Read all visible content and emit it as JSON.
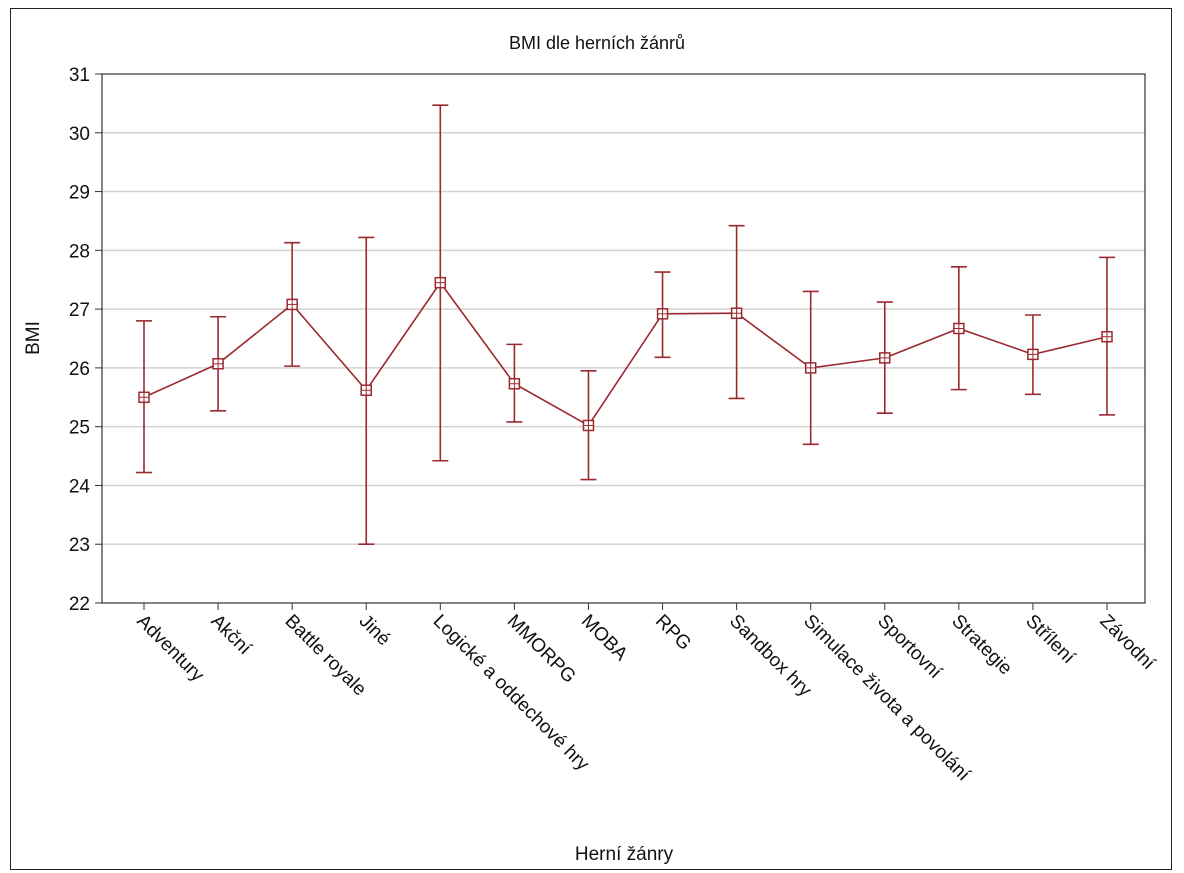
{
  "chart_data": {
    "type": "line",
    "title": "BMI dle herních žánrů",
    "xlabel": "Herní žánry",
    "ylabel": "BMI",
    "ylim": [
      22,
      31
    ],
    "yticks": [
      22,
      23,
      24,
      25,
      26,
      27,
      28,
      29,
      30,
      31
    ],
    "grid": true,
    "categories": [
      "Adventury",
      "Akční",
      "Battle royale",
      "Jiné",
      "Logické a oddechové hry",
      "MMORPG",
      "MOBA",
      "RPG",
      "Sandbox hry",
      "Simulace života a povolání",
      "Sportovní",
      "Strategie",
      "Střílení",
      "Závodní"
    ],
    "series": [
      {
        "mean": [
          25.5,
          26.07,
          27.08,
          25.62,
          27.45,
          25.73,
          25.02,
          26.92,
          26.93,
          26.0,
          26.17,
          26.67,
          26.23,
          26.53
        ],
        "lower": [
          24.22,
          25.27,
          26.03,
          23.0,
          24.42,
          25.08,
          24.1,
          26.18,
          25.48,
          24.7,
          25.23,
          25.63,
          25.55,
          25.2
        ],
        "upper": [
          26.8,
          26.87,
          28.13,
          28.22,
          30.47,
          26.4,
          25.95,
          27.63,
          28.42,
          27.3,
          27.12,
          27.72,
          26.9,
          27.88
        ]
      }
    ],
    "colors": {
      "series": "#9b2a2f",
      "grid": "#d2d2d2",
      "axis": "#333333"
    }
  }
}
